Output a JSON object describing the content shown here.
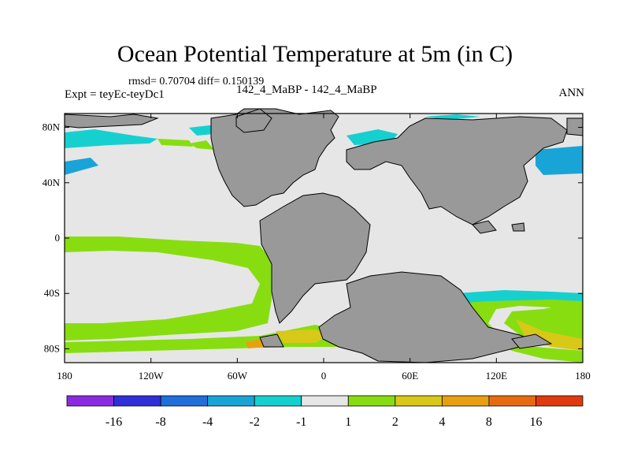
{
  "chart_data": {
    "type": "heatmap",
    "title": "Ocean Potential Temperature at 5m (in C)",
    "stats": "rmsd= 0.70704 diff= 0.150139",
    "experiment": "Expt = teyEc-teyDc1",
    "case_label": "142_4_MaBP - 142_4_MaBP",
    "season": "ANN",
    "x_ticks": [
      {
        "value": -180,
        "label": "180"
      },
      {
        "value": -120,
        "label": "120W"
      },
      {
        "value": -60,
        "label": "60W"
      },
      {
        "value": 0,
        "label": "0"
      },
      {
        "value": 60,
        "label": "60E"
      },
      {
        "value": 120,
        "label": "120E"
      },
      {
        "value": 180,
        "label": "180"
      }
    ],
    "y_ticks": [
      {
        "value": 80,
        "label": "80N"
      },
      {
        "value": 40,
        "label": "40N"
      },
      {
        "value": 0,
        "label": "0"
      },
      {
        "value": -40,
        "label": "40S"
      },
      {
        "value": -80,
        "label": "80S"
      }
    ],
    "xlim": [
      -180,
      180
    ],
    "ylim": [
      -90,
      90
    ],
    "colorbar": {
      "colors": [
        "#8a2be2",
        "#3030d8",
        "#1f6fdb",
        "#19a4d8",
        "#16d0d0",
        "#e6e6e6",
        "#88dd10",
        "#d8c818",
        "#e8a010",
        "#e86a10",
        "#e03a10"
      ],
      "labels": [
        "-16",
        "-8",
        "-4",
        "-2",
        "-1",
        "1",
        "2",
        "4",
        "8",
        "16"
      ]
    },
    "colors": {
      "land": "#999999",
      "neutral": "#e6e6e6",
      "green": "#88dd10",
      "yellow": "#d8c818",
      "orange": "#e8a010",
      "cyan": "#16d0d0",
      "lightblue": "#19a4d8"
    }
  }
}
